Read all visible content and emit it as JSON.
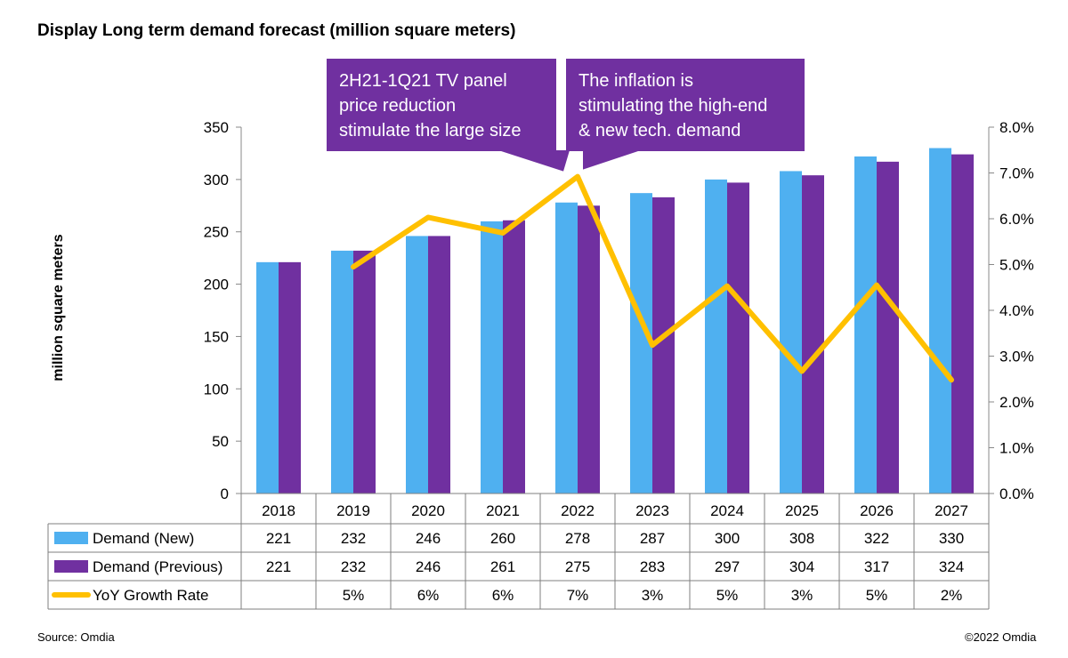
{
  "title": "Display Long term demand forecast (million square meters)",
  "source": "Source: Omdia",
  "copyright": "©2022 Omdia",
  "colors": {
    "demand_new": "#4fb0f0",
    "demand_previous": "#7030a0",
    "yoy": "#ffc000",
    "callout": "#7030a0"
  },
  "callouts": [
    {
      "lines": [
        "2H21-1Q21 TV panel",
        "price reduction",
        "stimulate the large size"
      ]
    },
    {
      "lines": [
        "The inflation is",
        "stimulating the high-end",
        "& new tech. demand"
      ]
    }
  ],
  "chart_data": {
    "type": "bar",
    "title": "Display Long term demand forecast (million square meters)",
    "ylabel": "million square meters",
    "ylim": [
      0,
      350
    ],
    "yticks": [
      0,
      50,
      100,
      150,
      200,
      250,
      300,
      350
    ],
    "y2lim": [
      0,
      8.0
    ],
    "y2ticks": [
      "0.0%",
      "1.0%",
      "2.0%",
      "3.0%",
      "4.0%",
      "5.0%",
      "6.0%",
      "7.0%",
      "8.0%"
    ],
    "categories": [
      "2018",
      "2019",
      "2020",
      "2021",
      "2022",
      "2023",
      "2024",
      "2025",
      "2026",
      "2027"
    ],
    "series": [
      {
        "name": "Demand (New)",
        "type": "bar",
        "axis": "left",
        "values": [
          221,
          232,
          246,
          260,
          278,
          287,
          300,
          308,
          322,
          330
        ]
      },
      {
        "name": "Demand (Previous)",
        "type": "bar",
        "axis": "left",
        "values": [
          221,
          232,
          246,
          261,
          275,
          283,
          297,
          304,
          317,
          324
        ]
      },
      {
        "name": "YoY Growth Rate",
        "type": "line",
        "axis": "right",
        "values": [
          null,
          4.95,
          6.03,
          5.69,
          6.92,
          3.24,
          4.53,
          2.67,
          4.55,
          2.48
        ],
        "labels": [
          "",
          "5%",
          "6%",
          "6%",
          "7%",
          "3%",
          "5%",
          "3%",
          "5%",
          "2%"
        ]
      }
    ]
  }
}
